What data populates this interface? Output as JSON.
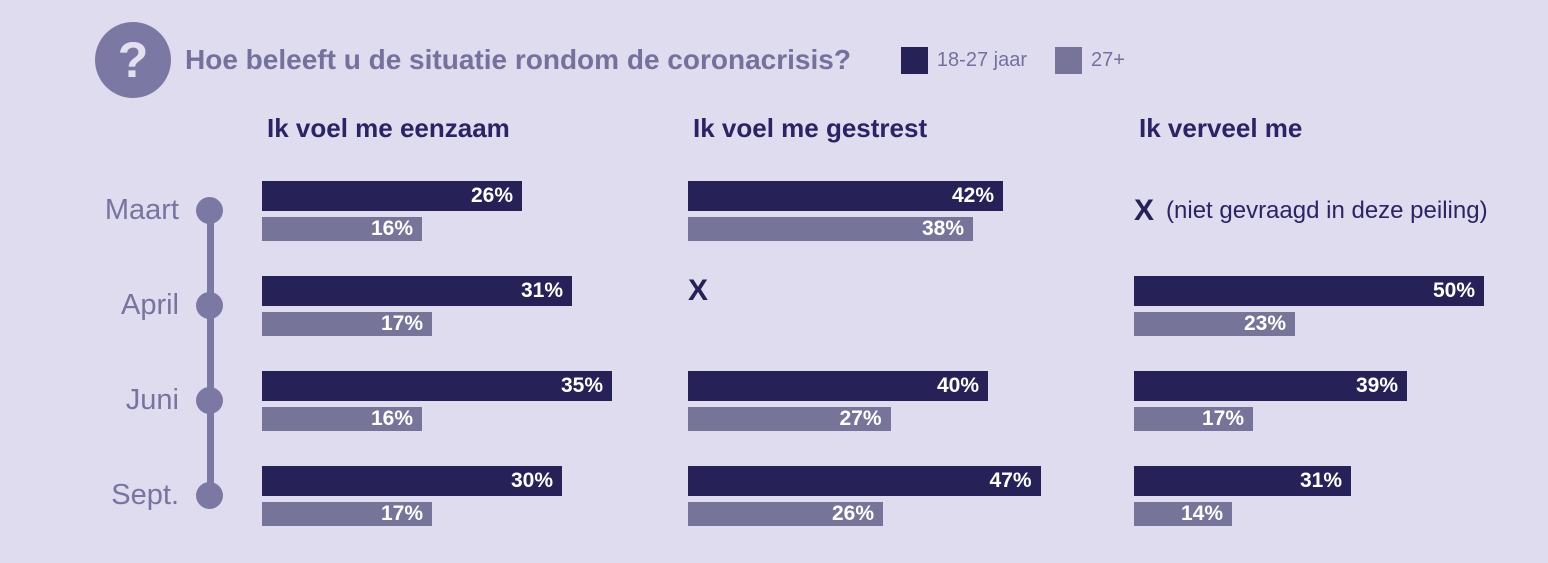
{
  "header": {
    "icon": "question-mark-icon",
    "icon_glyph": "?",
    "title": "Hoe beleeft u de situatie rondom de coronacrisis?",
    "legend": [
      {
        "label": "18-27 jaar",
        "color": "#262157"
      },
      {
        "label": "27+",
        "color": "#767499"
      }
    ]
  },
  "colors": {
    "background": "#dedcee",
    "young_bar": "#262157",
    "older_bar": "#767499",
    "muted_text": "#74719d",
    "bar_value_text": "#ffffff"
  },
  "chart_data": {
    "type": "bar",
    "orientation": "horizontal",
    "unit": "%",
    "categories": [
      "Maart",
      "April",
      "Juni",
      "Sept."
    ],
    "series_names": [
      "18-27 jaar",
      "27+"
    ],
    "legend_position": "top",
    "groups": [
      {
        "title": "Ik voel me eenzaam",
        "rows": [
          {
            "month": "Maart",
            "young": 26,
            "old": 16,
            "young_label": "26%",
            "old_label": "16%"
          },
          {
            "month": "April",
            "young": 31,
            "old": 17,
            "young_label": "31%",
            "old_label": "17%"
          },
          {
            "month": "Juni",
            "young": 35,
            "old": 16,
            "young_label": "35%",
            "old_label": "16%"
          },
          {
            "month": "Sept.",
            "young": 30,
            "old": 17,
            "young_label": "30%",
            "old_label": "17%"
          }
        ]
      },
      {
        "title": "Ik voel me gestrest",
        "rows": [
          {
            "month": "Maart",
            "young": 42,
            "old": 38,
            "young_label": "42%",
            "old_label": "38%"
          },
          {
            "month": "April",
            "missing": "X"
          },
          {
            "month": "Juni",
            "young": 40,
            "old": 27,
            "young_label": "40%",
            "old_label": "27%"
          },
          {
            "month": "Sept.",
            "young": 47,
            "old": 26,
            "young_label": "47%",
            "old_label": "26%"
          }
        ]
      },
      {
        "title": "Ik verveel me",
        "rows": [
          {
            "month": "Maart",
            "missing": "X",
            "missing_note": "(niet gevraagd in deze peiling)"
          },
          {
            "month": "April",
            "young": 50,
            "old": 23,
            "young_label": "50%",
            "old_label": "23%"
          },
          {
            "month": "Juni",
            "young": 39,
            "old": 17,
            "young_label": "39%",
            "old_label": "17%"
          },
          {
            "month": "Sept.",
            "young": 31,
            "old": 14,
            "young_label": "31%",
            "old_label": "14%"
          }
        ]
      }
    ]
  }
}
